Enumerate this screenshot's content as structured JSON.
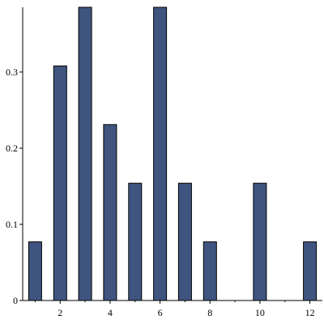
{
  "chart_data": {
    "type": "bar",
    "categories": [
      1,
      2,
      3,
      4,
      5,
      6,
      7,
      8,
      9,
      10,
      11,
      12
    ],
    "values": [
      0.077,
      0.308,
      0.385,
      0.231,
      0.154,
      0.385,
      0.154,
      0.077,
      0.0,
      0.154,
      0.0,
      0.077
    ],
    "title": "",
    "xlabel": "",
    "ylabel": "",
    "xlim": [
      0.5,
      12.5
    ],
    "ylim": [
      0,
      0.385
    ],
    "xticks": [
      2,
      4,
      6,
      8,
      10,
      12
    ],
    "yticks": [
      0,
      0.1,
      0.2,
      0.3
    ],
    "xtick_labels": [
      "2",
      "4",
      "6",
      "8",
      "10",
      "12"
    ],
    "ytick_labels": [
      "0",
      "0.1",
      "0.2",
      "0.3"
    ],
    "grid": false,
    "bar_color": "#3f5580",
    "bar_border_color": "#000000"
  }
}
